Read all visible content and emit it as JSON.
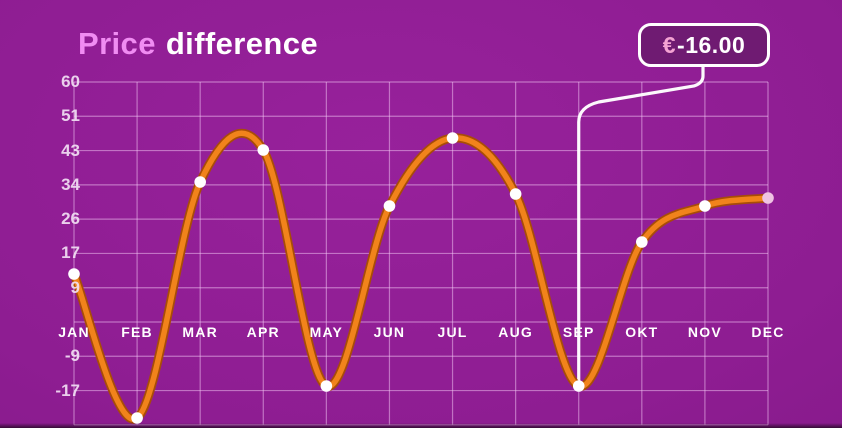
{
  "title": {
    "highlight": "Price",
    "rest": "difference"
  },
  "callout": {
    "currency_symbol": "€",
    "amount": "-16.00",
    "target_month": "SEP"
  },
  "chart_data": {
    "type": "line",
    "title": "Price difference",
    "categories": [
      "JAN",
      "FEB",
      "MAR",
      "APR",
      "MAY",
      "JUN",
      "JUL",
      "AUG",
      "SEP",
      "OKT",
      "NOV",
      "DEC"
    ],
    "series": [
      {
        "name": "Price difference (EUR)",
        "values": [
          12,
          -24,
          35,
          43,
          -16,
          29,
          46,
          32,
          -16,
          20,
          29,
          31
        ]
      }
    ],
    "y_ticks": [
      {
        "label": "60",
        "value": 60
      },
      {
        "label": "51",
        "value": 51.43
      },
      {
        "label": "43",
        "value": 42.86
      },
      {
        "label": "34",
        "value": 34.29
      },
      {
        "label": "26",
        "value": 25.71
      },
      {
        "label": "17",
        "value": 17.14
      },
      {
        "label": "9",
        "value": 8.57
      },
      {
        "label": "-9",
        "value": -8.57
      },
      {
        "label": "-17",
        "value": -17.14
      }
    ],
    "grid_values": [
      60,
      51.43,
      42.86,
      34.29,
      25.71,
      17.14,
      8.57,
      0,
      -8.57,
      -17.14,
      -25.71
    ],
    "ylim": [
      -26,
      60
    ],
    "grid": true,
    "legend": false,
    "annotation": {
      "text": "€-16.00",
      "month": "SEP",
      "value": -16
    },
    "marked_month_index": 8
  },
  "colors": {
    "background": "#8e1d92",
    "grid": "#f3c6f4",
    "line": "#f1831b",
    "line_edge": "#a84d07",
    "marker": "#ffffff",
    "last_marker": "#efc3e3",
    "title_highlight": "#f08cf2",
    "title_rest": "#ffffff",
    "axis_label": "#f2dff4",
    "month_label": "#ffffff",
    "callout_fill": "#6f1b72",
    "callout_border": "#ffffff",
    "euro_pink": "#f4a3d3",
    "leader_line": "#ffffff"
  }
}
